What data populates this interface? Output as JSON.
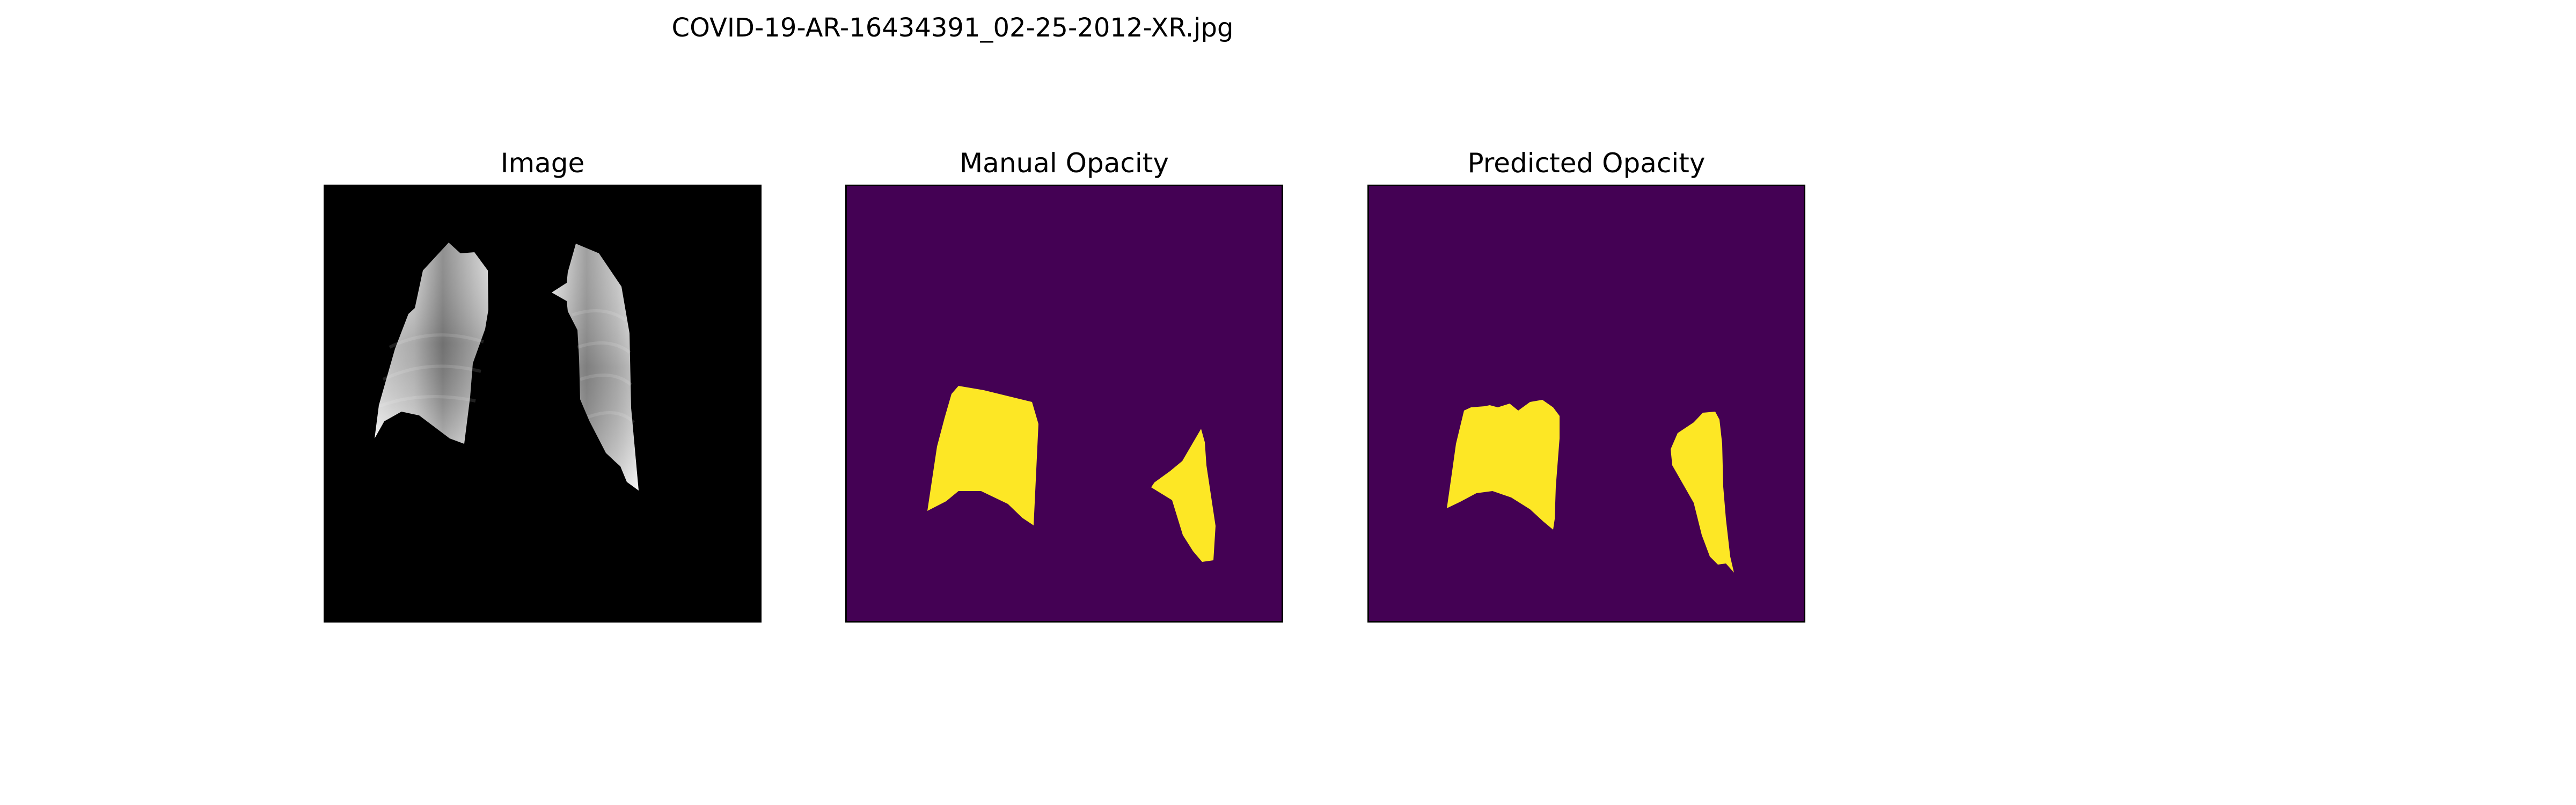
{
  "figure": {
    "title": "COVID-19-AR-16434391_02-25-2012-XR.jpg"
  },
  "panels": [
    {
      "title": "Image"
    },
    {
      "title": "Manual Opacity"
    },
    {
      "title": "Predicted Opacity"
    }
  ],
  "colors": {
    "xray_background": "#000000",
    "mask_background": "#440154",
    "mask_foreground": "#fde725"
  }
}
